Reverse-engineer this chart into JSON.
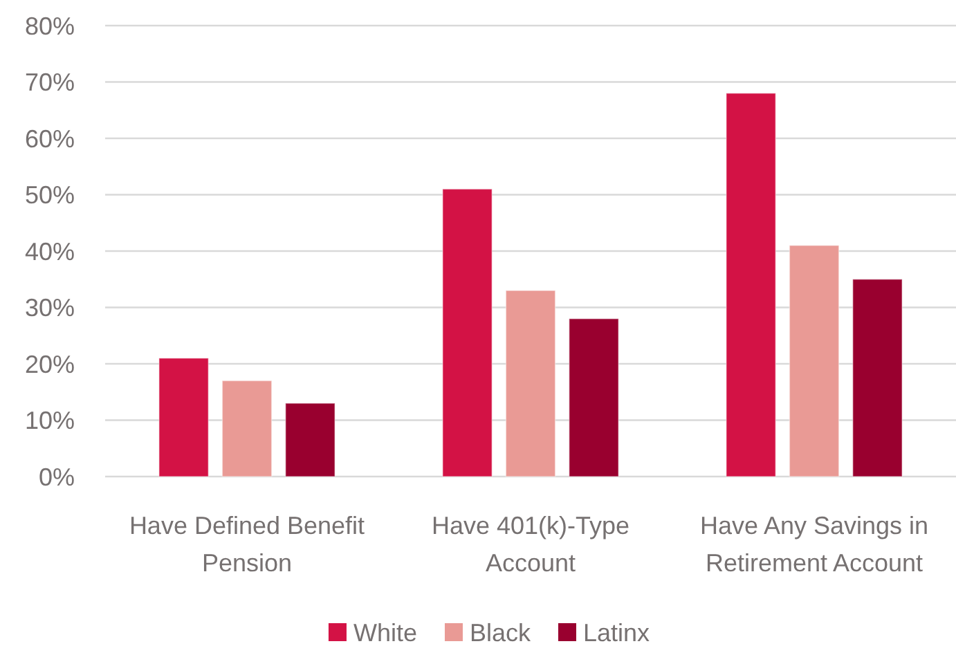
{
  "chart_data": {
    "type": "bar",
    "categories": [
      "Have Defined Benefit Pension",
      "Have 401(k)-Type Account",
      "Have Any Savings in Retirement Account"
    ],
    "series": [
      {
        "name": "White",
        "color": "#d31245",
        "values": [
          21,
          51,
          68
        ]
      },
      {
        "name": "Black",
        "color": "#e99a95",
        "values": [
          17,
          33,
          41
        ]
      },
      {
        "name": "Latinx",
        "color": "#99002f",
        "values": [
          13,
          28,
          35
        ]
      }
    ],
    "ylim": [
      0,
      80
    ],
    "yticks": [
      {
        "value": 0,
        "label": "0%"
      },
      {
        "value": 10,
        "label": "10%"
      },
      {
        "value": 20,
        "label": "20%"
      },
      {
        "value": 30,
        "label": "30%"
      },
      {
        "value": 40,
        "label": "40%"
      },
      {
        "value": 50,
        "label": "50%"
      },
      {
        "value": 60,
        "label": "60%"
      },
      {
        "value": 70,
        "label": "70%"
      },
      {
        "value": 80,
        "label": "80%"
      }
    ],
    "grid": "y",
    "legend": "bottom"
  }
}
